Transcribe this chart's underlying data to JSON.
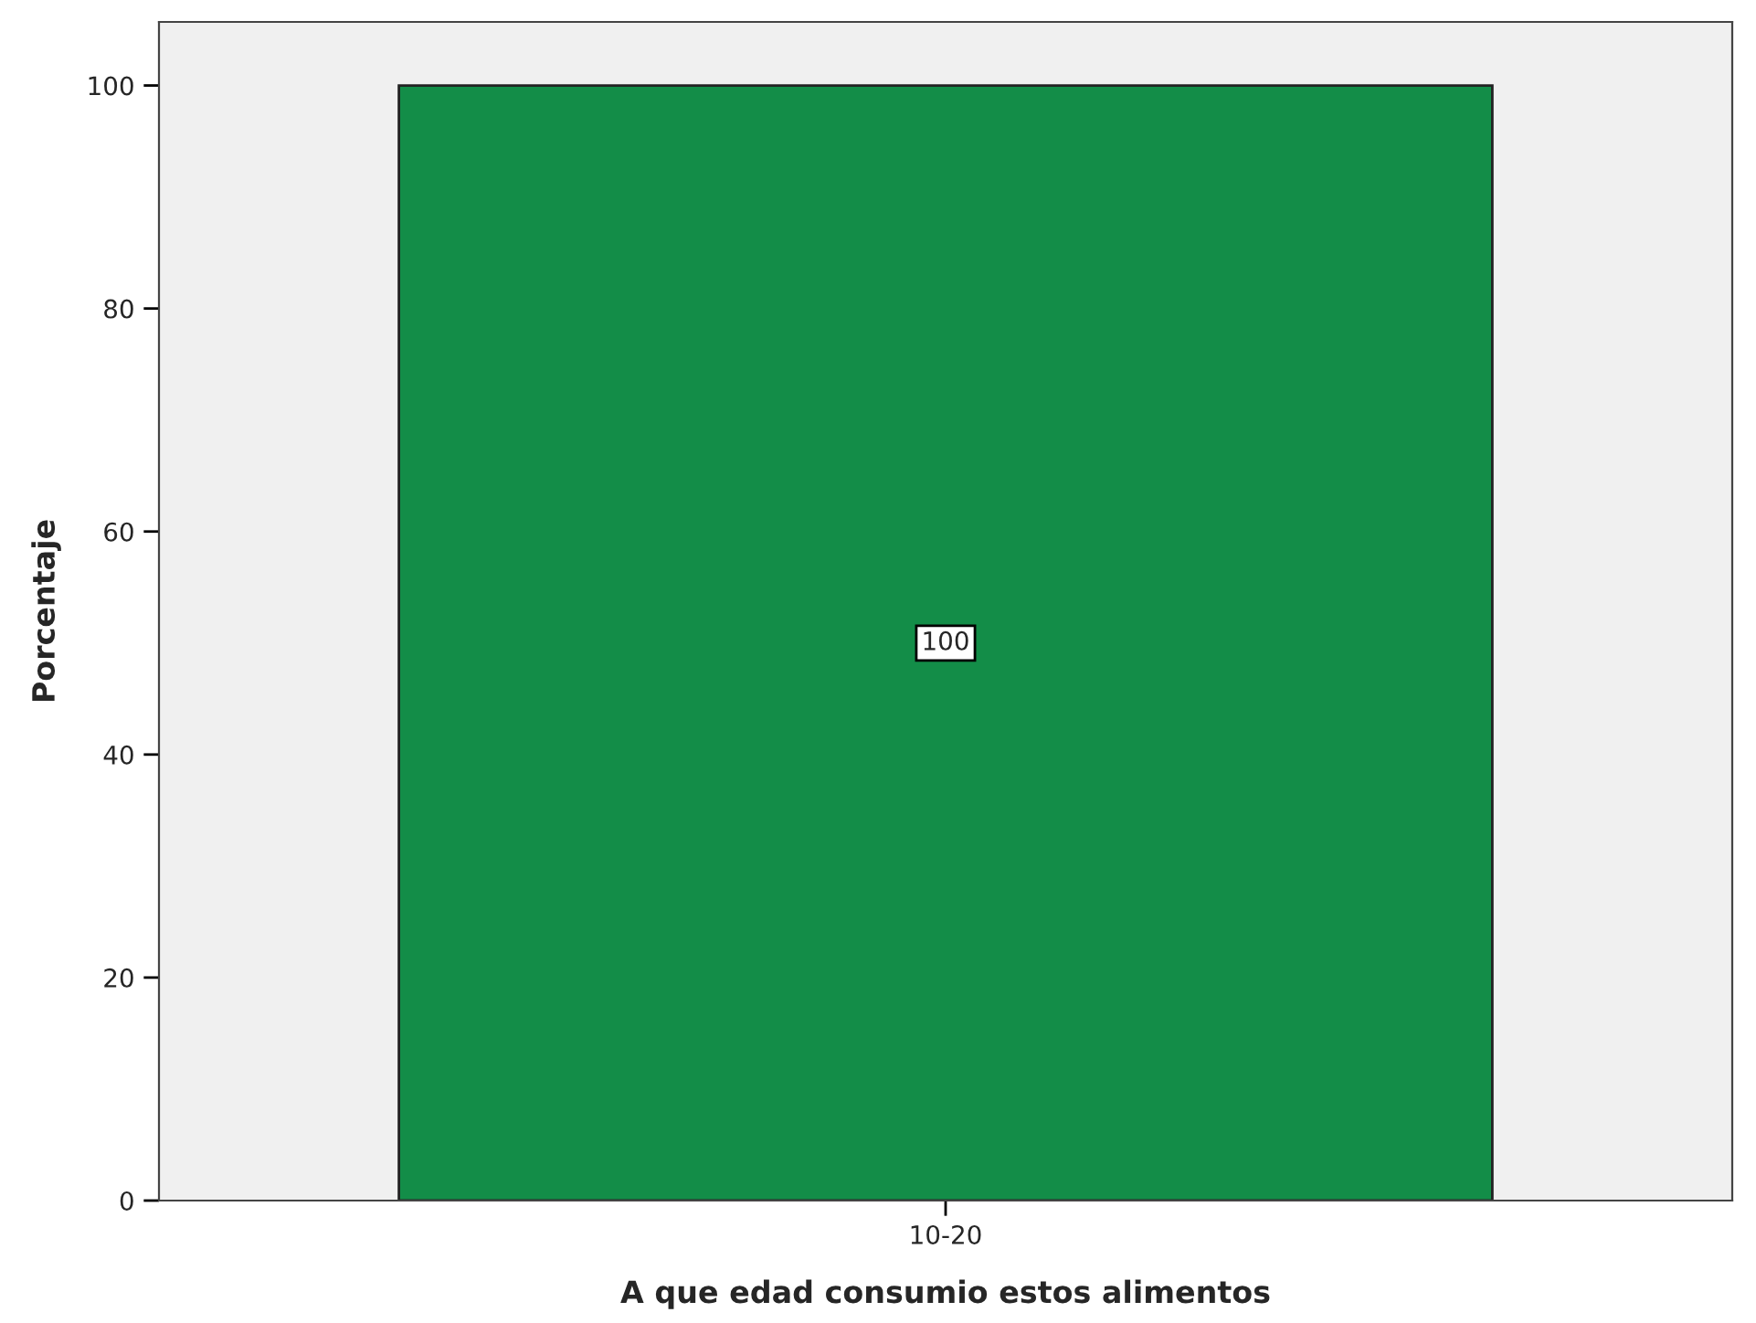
{
  "chart_data": {
    "type": "bar",
    "xlabel": "A que edad consumio estos alimentos",
    "ylabel": "Porcentaje",
    "categories": [
      "10-20"
    ],
    "series": [
      {
        "color": "#138d48",
        "values": [
          100
        ]
      }
    ],
    "ylim": [
      0,
      105.7
    ],
    "yticks": [
      0,
      20,
      40,
      60,
      80,
      100
    ],
    "grid": false,
    "data_labels": true
  }
}
